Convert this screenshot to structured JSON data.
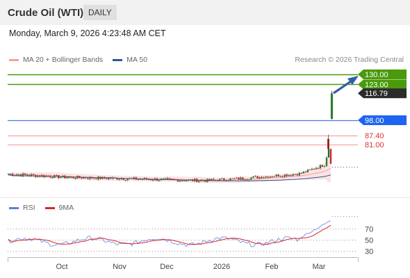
{
  "header": {
    "title": "Crude Oil (WTI)",
    "period_badge": "DAILY"
  },
  "datetime": "Monday, March 9, 2026 4:23:48 AM CET",
  "credit": "Research © 2026 Trading Central",
  "legend_main": [
    {
      "label": "MA 20 + Bollinger Bands",
      "color": "#f4a0a0"
    },
    {
      "label": "MA 50",
      "color": "#2f5597"
    }
  ],
  "legend_rsi": [
    {
      "label": "RSI",
      "color": "#5b7fd6"
    },
    {
      "label": "9MA",
      "color": "#d9242b"
    }
  ],
  "chart_data": {
    "type": "candlestick",
    "x_tick_labels": [
      "Oct",
      "Nov",
      "Dec",
      "2026",
      "Feb",
      "Mar"
    ],
    "price_levels": [
      {
        "label": "130.00",
        "value": 130.0,
        "kind": "resistance",
        "color": "#4a9a0c"
      },
      {
        "label": "123.00",
        "value": 123.0,
        "kind": "resistance",
        "color": "#4a9a0c"
      },
      {
        "label": "116.79",
        "value": 116.79,
        "kind": "last",
        "color": "#333333"
      },
      {
        "label": "98.00",
        "value": 98.0,
        "kind": "pivot",
        "color": "#1e64f0"
      },
      {
        "label": "87.40",
        "value": 87.4,
        "kind": "support",
        "color": "#e03030"
      },
      {
        "label": "81.00",
        "value": 81.0,
        "kind": "support",
        "color": "#e03030"
      }
    ],
    "price_ylim": [
      45,
      140
    ],
    "rsi": {
      "tick_labels": [
        "70",
        "50",
        "30"
      ],
      "ylim": [
        15,
        85
      ],
      "levels": [
        70,
        50,
        30
      ]
    }
  }
}
